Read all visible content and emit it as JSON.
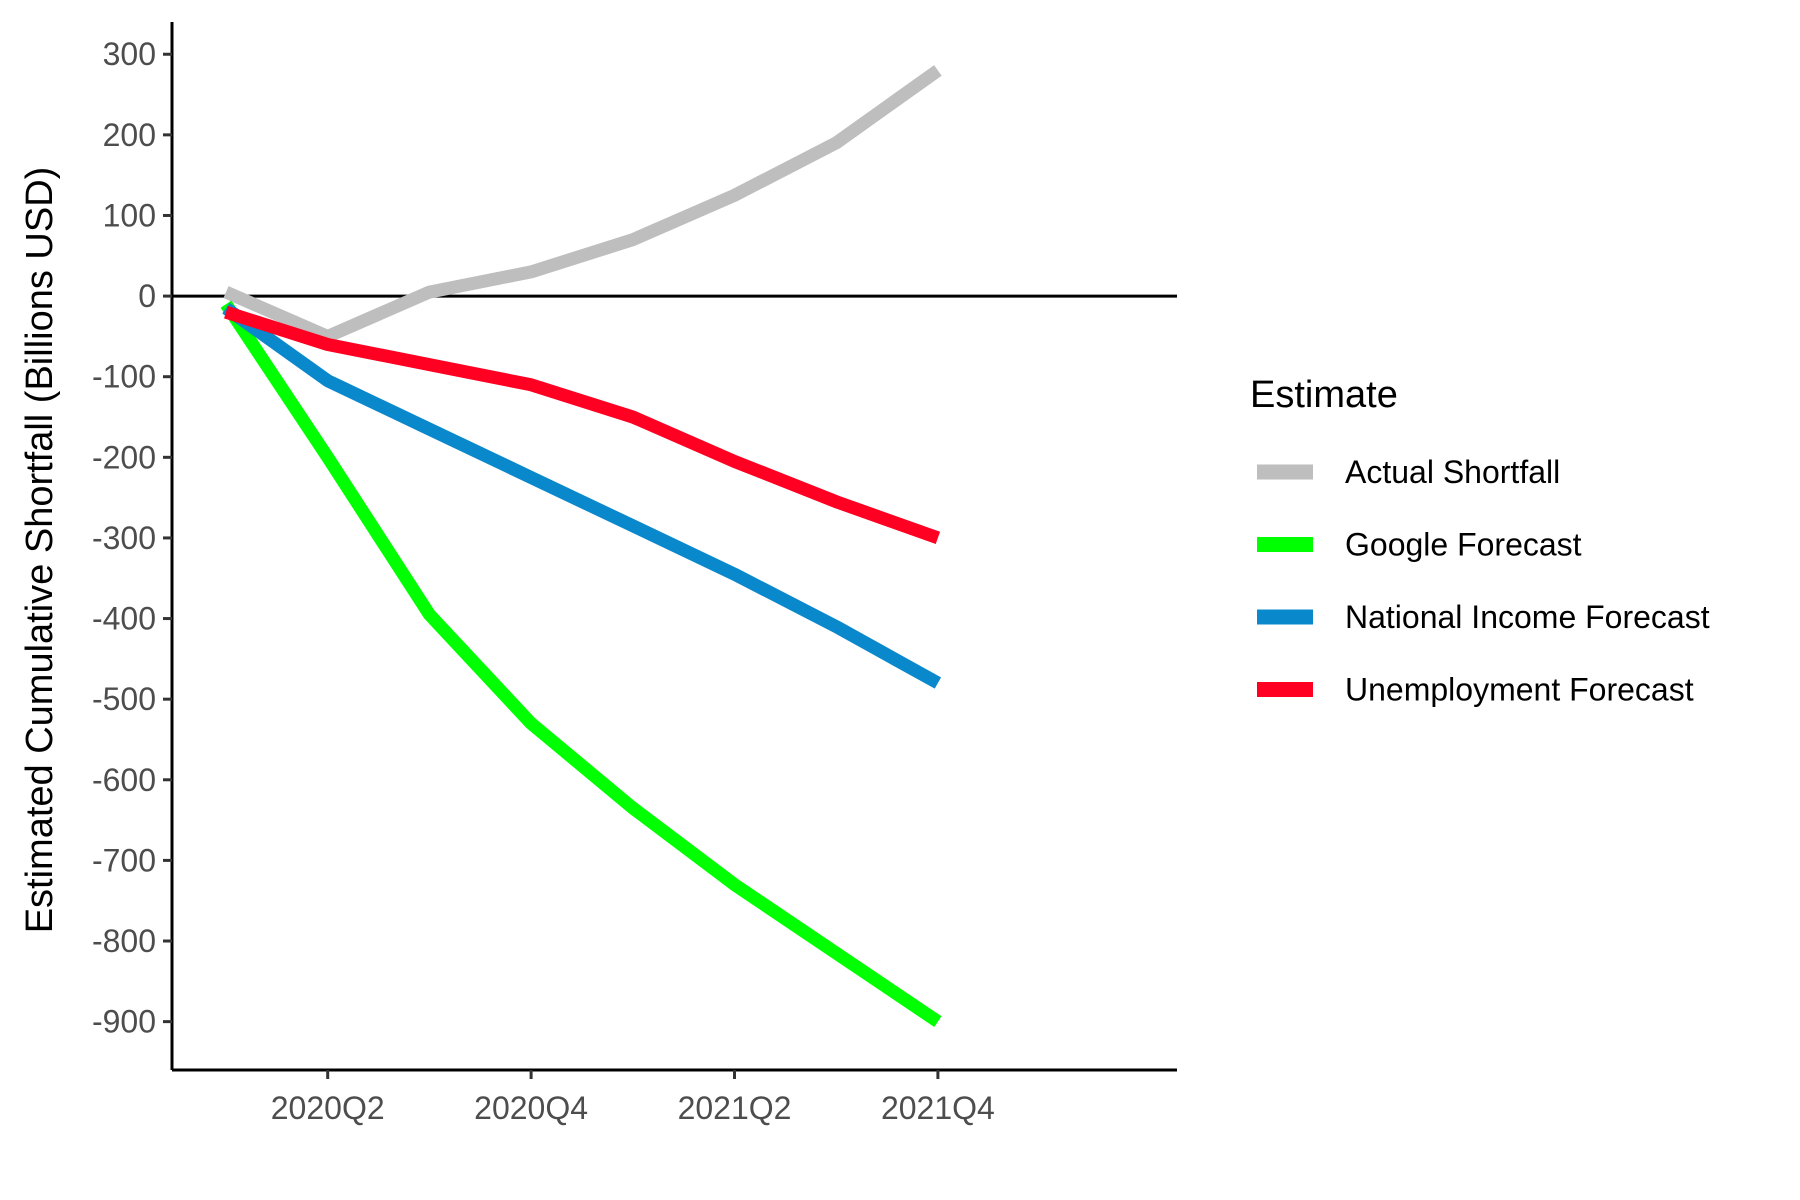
{
  "chart_data": {
    "type": "line",
    "title": "",
    "xlabel": "",
    "ylabel": "Estimated Cumulative Shortfall (Billions USD)",
    "x": [
      "2020Q1",
      "2020Q2",
      "2020Q3",
      "2020Q4",
      "2021Q1",
      "2021Q2",
      "2021Q3",
      "2021Q4"
    ],
    "x_ticks": [
      "2020Q2",
      "2020Q4",
      "2021Q2",
      "2021Q4"
    ],
    "ylim": [
      -960,
      340
    ],
    "y_ticks": [
      300,
      200,
      100,
      0,
      -100,
      -200,
      -300,
      -400,
      -500,
      -600,
      -700,
      -800,
      -900
    ],
    "y_tick_labels": [
      "300",
      "200",
      "100",
      "0",
      "-100",
      "-200",
      "-300",
      "-400",
      "-500",
      "-600",
      "-700",
      "-800",
      "-900"
    ],
    "reference_line": 0,
    "grid": false,
    "legend": {
      "title": "Estimate",
      "placement": "right"
    },
    "series": [
      {
        "name": "Actual Shortfall",
        "color": "#bebebe",
        "values": [
          5,
          -50,
          5,
          30,
          70,
          125,
          190,
          280
        ]
      },
      {
        "name": "Google Forecast",
        "color": "#00ff00",
        "values": [
          -10,
          -200,
          -395,
          -530,
          -635,
          -730,
          -815,
          -900
        ]
      },
      {
        "name": "National Income Forecast",
        "color": "#0a88cc",
        "values": [
          -15,
          -105,
          -165,
          -225,
          -285,
          -345,
          -410,
          -480
        ]
      },
      {
        "name": "Unemployment Forecast",
        "color": "#ff0022",
        "values": [
          -20,
          -60,
          -85,
          -110,
          -150,
          -205,
          -255,
          -300
        ]
      }
    ]
  }
}
